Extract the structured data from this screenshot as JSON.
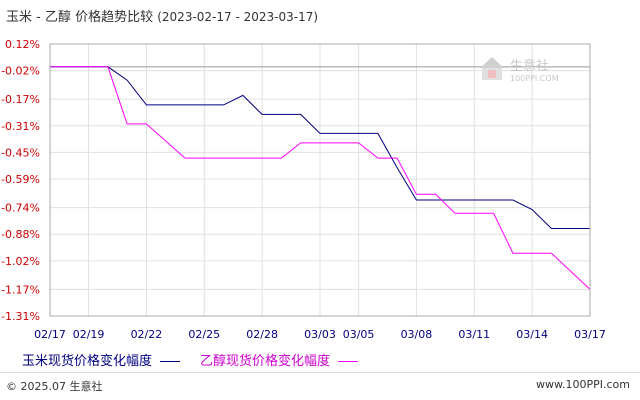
{
  "title": {
    "main": "玉米 - 乙醇 价格趋势比较",
    "range": "(2023-02-17 - 2023-03-17)"
  },
  "watermark": {
    "name": "生意社",
    "url": "100PPI.COM"
  },
  "footer": {
    "left": "© 2025.07 生意社",
    "right": "www.100PPI.com"
  },
  "colors": {
    "series1": "#000080",
    "series2": "#ff00ff",
    "axis_text_y": "#cc0000",
    "axis_text_x": "#000080",
    "grid": "#e0e0e0",
    "zero_line": "#999999"
  },
  "chart_data": {
    "type": "line",
    "title": "玉米 - 乙醇 价格趋势比较",
    "xlabel": "",
    "ylabel": "",
    "ylim": [
      -1.31,
      0.12
    ],
    "ytick_values": [
      0.12,
      -0.02,
      -0.17,
      -0.31,
      -0.45,
      -0.59,
      -0.74,
      -0.88,
      -1.02,
      -1.17,
      -1.31
    ],
    "ytick_labels": [
      "0.12%",
      "-0.02%",
      "-0.17%",
      "-0.31%",
      "-0.45%",
      "-0.59%",
      "-0.74%",
      "-0.88%",
      "-1.02%",
      "-1.17%",
      "-1.31%"
    ],
    "x_start": "2023-02-17",
    "x_end": "2023-03-17",
    "xtick_labels": [
      "02/17",
      "02/19",
      "02/22",
      "02/25",
      "02/28",
      "03/03",
      "03/05",
      "03/08",
      "03/11",
      "03/14",
      "03/17"
    ],
    "xtick_days": [
      0,
      2,
      5,
      8,
      11,
      14,
      16,
      19,
      22,
      25,
      28
    ],
    "zero_line": 0,
    "grid": true,
    "legend_position": "bottom",
    "series": [
      {
        "name": "玉米现货价格变化幅度",
        "points": [
          [
            "2023-02-17",
            0.0
          ],
          [
            "2023-02-20",
            0.0
          ],
          [
            "2023-02-21",
            -0.07
          ],
          [
            "2023-02-22",
            -0.2
          ],
          [
            "2023-02-23",
            -0.2
          ],
          [
            "2023-02-25",
            -0.2
          ],
          [
            "2023-02-26",
            -0.2
          ],
          [
            "2023-02-27",
            -0.15
          ],
          [
            "2023-02-28",
            -0.25
          ],
          [
            "2023-03-02",
            -0.25
          ],
          [
            "2023-03-03",
            -0.35
          ],
          [
            "2023-03-06",
            -0.35
          ],
          [
            "2023-03-07",
            -0.53
          ],
          [
            "2023-03-08",
            -0.7
          ],
          [
            "2023-03-13",
            -0.7
          ],
          [
            "2023-03-14",
            -0.75
          ],
          [
            "2023-03-15",
            -0.85
          ],
          [
            "2023-03-17",
            -0.85
          ]
        ]
      },
      {
        "name": "乙醇现货价格变化幅度",
        "points": [
          [
            "2023-02-17",
            0.0
          ],
          [
            "2023-02-20",
            0.0
          ],
          [
            "2023-02-21",
            -0.3
          ],
          [
            "2023-02-22",
            -0.3
          ],
          [
            "2023-02-24",
            -0.48
          ],
          [
            "2023-02-25",
            -0.48
          ],
          [
            "2023-03-01",
            -0.48
          ],
          [
            "2023-03-02",
            -0.4
          ],
          [
            "2023-03-05",
            -0.4
          ],
          [
            "2023-03-06",
            -0.48
          ],
          [
            "2023-03-07",
            -0.48
          ],
          [
            "2023-03-08",
            -0.67
          ],
          [
            "2023-03-09",
            -0.67
          ],
          [
            "2023-03-10",
            -0.77
          ],
          [
            "2023-03-12",
            -0.77
          ],
          [
            "2023-03-13",
            -0.98
          ],
          [
            "2023-03-15",
            -0.98
          ],
          [
            "2023-03-17",
            -1.17
          ]
        ]
      }
    ]
  }
}
